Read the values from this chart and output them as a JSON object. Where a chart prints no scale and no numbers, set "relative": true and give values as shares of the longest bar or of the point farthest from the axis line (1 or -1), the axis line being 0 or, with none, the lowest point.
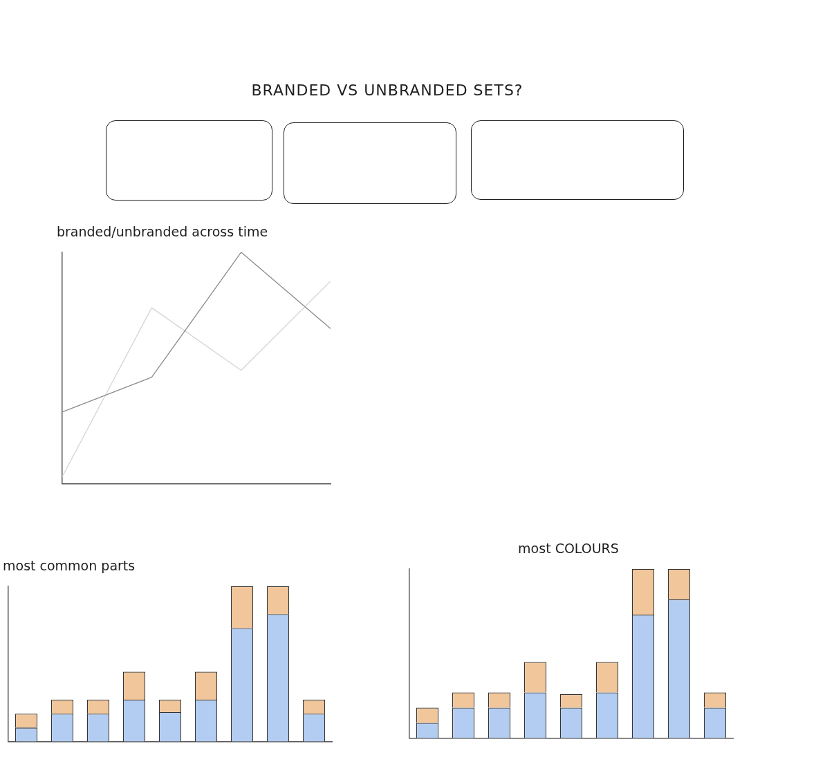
{
  "chart_data": [
    {
      "type": "other",
      "title": "BRANDED VS UNBRANDED SETS?"
    },
    {
      "type": "line",
      "title": "branded/unbranded across time",
      "relative": true,
      "grid": false,
      "legend": false,
      "marker": "none",
      "categories": [
        null,
        null,
        null,
        null
      ],
      "series": [
        {
          "color": "#8a8a8a",
          "values": [
            0.31,
            0.46,
            1,
            0.67
          ]
        },
        {
          "color": "#d4d4d4",
          "values": [
            0.03,
            0.76,
            0.49,
            0.875
          ]
        }
      ]
    },
    {
      "type": "bar",
      "title": "most common parts",
      "relative": true,
      "stacked": true,
      "grid": false,
      "legend": false,
      "categories": [
        null,
        null,
        null,
        null,
        null,
        null,
        null,
        null,
        null
      ],
      "series": [
        {
          "color": "#b3cdf2",
          "values": [
            0.09,
            0.18,
            0.18,
            0.27,
            0.19,
            0.27,
            0.73,
            0.82,
            0.18
          ]
        },
        {
          "color": "#f2c69b",
          "values": [
            0.09,
            0.09,
            0.09,
            0.18,
            0.08,
            0.18,
            0.27,
            0.18,
            0.09
          ]
        }
      ]
    },
    {
      "type": "bar",
      "title": "most COLOURS",
      "relative": true,
      "stacked": true,
      "grid": false,
      "legend": false,
      "categories": [
        null,
        null,
        null,
        null,
        null,
        null,
        null,
        null,
        null
      ],
      "series": [
        {
          "color": "#b3cdf2",
          "values": [
            0.09,
            0.18,
            0.18,
            0.27,
            0.18,
            0.27,
            0.73,
            0.82,
            0.18
          ]
        },
        {
          "color": "#f2c69b",
          "values": [
            0.09,
            0.09,
            0.09,
            0.18,
            0.08,
            0.18,
            0.27,
            0.18,
            0.09
          ]
        }
      ]
    }
  ]
}
